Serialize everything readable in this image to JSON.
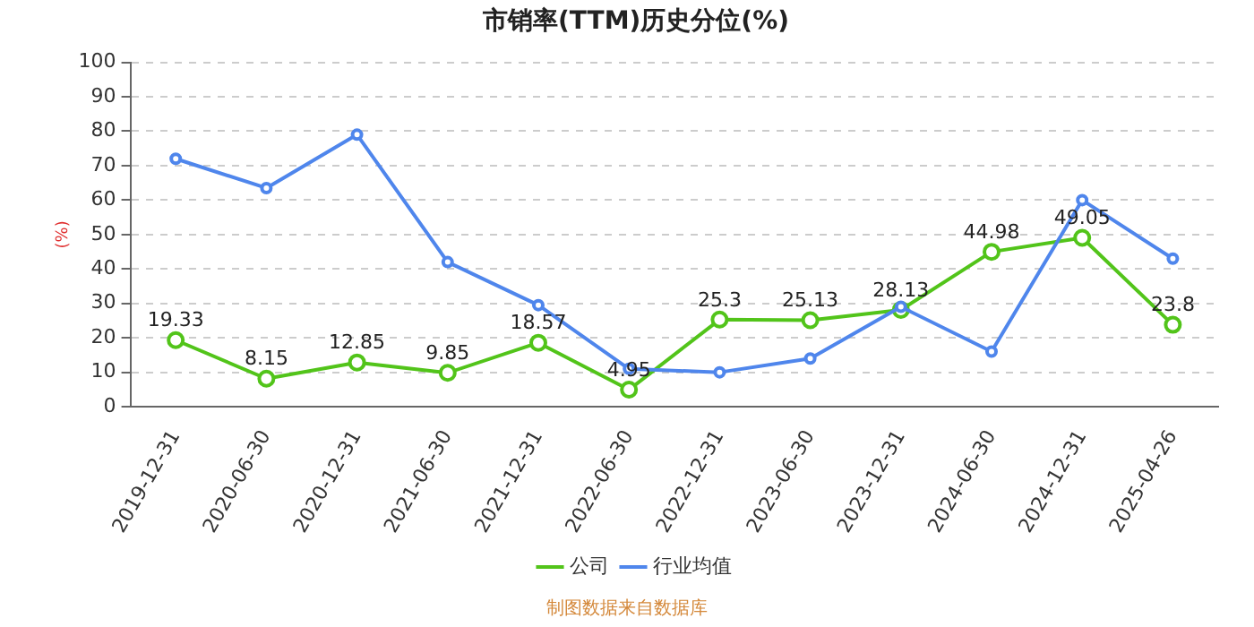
{
  "chart_data": {
    "type": "line",
    "title": "市销率(TTM)历史分位(%)",
    "ylabel": "(%)",
    "categories": [
      "2019-12-31",
      "2020-06-30",
      "2020-12-31",
      "2021-06-30",
      "2021-12-31",
      "2022-06-30",
      "2022-12-31",
      "2023-06-30",
      "2023-12-31",
      "2024-06-30",
      "2024-12-31",
      "2025-04-26"
    ],
    "series": [
      {
        "name": "公司",
        "color": "#52c41a",
        "values": [
          19.33,
          8.15,
          12.85,
          9.85,
          18.57,
          4.95,
          25.3,
          25.13,
          28.13,
          44.98,
          49.05,
          23.8
        ],
        "value_labels": [
          "19.33",
          "8.15",
          "12.85",
          "9.85",
          "18.57",
          "4.95",
          "25.3",
          "25.13",
          "28.13",
          "44.98",
          "49.05",
          "23.8"
        ]
      },
      {
        "name": "行业均值",
        "color": "#4f86ec",
        "values": [
          72,
          63.5,
          79,
          42,
          29.5,
          11,
          10,
          14,
          29,
          16,
          60,
          43
        ]
      }
    ],
    "ylim": [
      0,
      100
    ],
    "yticks": [
      0,
      10,
      20,
      30,
      40,
      50,
      60,
      70,
      80,
      90,
      100
    ],
    "grid": "y",
    "legend": "bottom",
    "marker": "circle",
    "annotations": [
      "制图数据来自数据库"
    ]
  }
}
